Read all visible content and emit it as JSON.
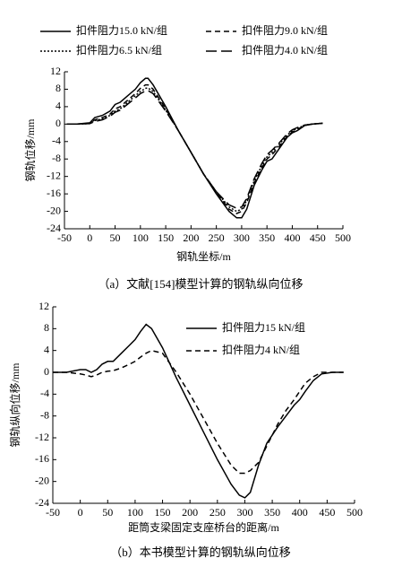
{
  "chart_data": [
    {
      "type": "line",
      "caption": "（a）文献[154]模型计算的钢轨纵向位移",
      "x_label": "钢轨坐标/m",
      "y_label": "钢轨位移/mm",
      "xlim": [
        -50,
        500
      ],
      "xticks": [
        -50,
        0,
        50,
        100,
        150,
        200,
        250,
        300,
        350,
        400,
        450,
        500
      ],
      "ylim": [
        -24,
        12
      ],
      "yticks": [
        -24,
        -20,
        -16,
        -12,
        -8,
        -4,
        0,
        4,
        8,
        12
      ],
      "x": [
        -45,
        -25,
        0,
        10,
        25,
        40,
        50,
        60,
        75,
        90,
        100,
        110,
        115,
        125,
        150,
        175,
        200,
        225,
        250,
        275,
        290,
        300,
        310,
        325,
        340,
        350,
        360,
        375,
        390,
        400,
        410,
        425,
        440,
        460
      ],
      "series": [
        {
          "name": "扣件阻力15.0 kN/组",
          "color": "#000000",
          "dash": "solid",
          "values": [
            0,
            0,
            0.3,
            1.5,
            2,
            3,
            4.5,
            5,
            6.5,
            8,
            9.5,
            10.5,
            10.5,
            9,
            4,
            -1.5,
            -6.5,
            -11.5,
            -16,
            -20,
            -21.5,
            -21.5,
            -19.5,
            -14,
            -10.5,
            -8.5,
            -8,
            -5.5,
            -3,
            -2,
            -1.5,
            -0.3,
            0,
            0.2
          ]
        },
        {
          "name": "扣件阻力9.0 kN/组",
          "color": "#000000",
          "dash": "dashed",
          "values": [
            0,
            0,
            0.2,
            1,
            1.5,
            2.3,
            3.5,
            4,
            5.5,
            7,
            8.2,
            9,
            9,
            8,
            3.5,
            -1.5,
            -6.5,
            -11.5,
            -15.5,
            -19.5,
            -20.5,
            -20,
            -18,
            -13.5,
            -10,
            -8,
            -7,
            -5,
            -2.8,
            -1.8,
            -1.2,
            -0.3,
            0,
            0.2
          ]
        },
        {
          "name": "扣件阻力6.5 kN/组",
          "color": "#000000",
          "dash": "dotted",
          "values": [
            0,
            0,
            0.1,
            0.8,
            1.2,
            2,
            3,
            3.5,
            5,
            6.5,
            7.5,
            8.2,
            8.3,
            7.5,
            3.2,
            -1.5,
            -6.5,
            -11.5,
            -15.5,
            -19,
            -20,
            -19.5,
            -17.5,
            -13,
            -9.5,
            -7.5,
            -6.5,
            -4.5,
            -2.5,
            -1.5,
            -1,
            -0.2,
            0,
            0.2
          ]
        },
        {
          "name": "扣件阻力4.0 kN/组",
          "color": "#000000",
          "dash": "longdash",
          "values": [
            0,
            0,
            0.1,
            0.6,
            1,
            1.8,
            2.7,
            3.2,
            4.6,
            6,
            7,
            7.6,
            7.7,
            7,
            3,
            -1.5,
            -6.5,
            -11.5,
            -15.5,
            -18.5,
            -19.3,
            -19,
            -17,
            -12.5,
            -9,
            -7,
            -6,
            -4.2,
            -2.2,
            -1.3,
            -0.8,
            -0.2,
            0,
            0.2
          ]
        }
      ]
    },
    {
      "type": "line",
      "caption": "（b）本书模型计算的钢轨纵向位移",
      "x_label": "距筒支梁固定支座桥台的距离/m",
      "y_label": "钢轨纵向位移/mm",
      "xlim": [
        -50,
        500
      ],
      "xticks": [
        -50,
        0,
        50,
        100,
        150,
        200,
        250,
        300,
        350,
        400,
        450,
        500
      ],
      "ylim": [
        -24,
        12
      ],
      "yticks": [
        -24,
        -20,
        -16,
        -12,
        -8,
        -4,
        0,
        4,
        8,
        12
      ],
      "x": [
        -50,
        -25,
        0,
        10,
        20,
        30,
        40,
        50,
        60,
        75,
        90,
        100,
        110,
        120,
        130,
        150,
        175,
        200,
        225,
        250,
        275,
        290,
        300,
        310,
        325,
        340,
        360,
        375,
        390,
        400,
        410,
        425,
        440,
        460,
        480
      ],
      "series": [
        {
          "name": "扣件阻力15 kN/组",
          "color": "#000000",
          "dash": "solid",
          "values": [
            0,
            0,
            0.5,
            0.5,
            0,
            0.5,
            1.5,
            2,
            2,
            3.5,
            5,
            6,
            7.5,
            8.8,
            8,
            4.5,
            -1,
            -6,
            -11,
            -16,
            -20.5,
            -22.5,
            -23,
            -22,
            -17,
            -13,
            -10,
            -8,
            -6,
            -5,
            -3.5,
            -1.5,
            -0.3,
            0,
            0
          ]
        },
        {
          "name": "扣件阻力4 kN/组",
          "color": "#000000",
          "dash": "dashed",
          "values": [
            0,
            0,
            -0.3,
            -0.5,
            -0.8,
            -0.5,
            0,
            0.2,
            0.3,
            0.8,
            1.5,
            2,
            2.8,
            3.5,
            4,
            3.5,
            0,
            -4,
            -8.5,
            -13,
            -17,
            -18.5,
            -18.5,
            -18,
            -16.5,
            -13.5,
            -9.5,
            -7,
            -5,
            -3.5,
            -2,
            -0.8,
            0,
            0,
            0
          ]
        }
      ]
    }
  ]
}
